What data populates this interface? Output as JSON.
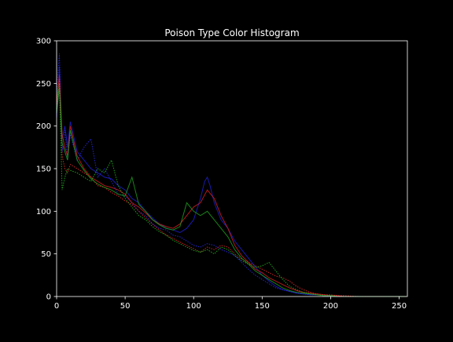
{
  "chart_data": {
    "type": "line",
    "title": "Poison Type Color Histogram",
    "xlabel": "",
    "ylabel": "",
    "xlim": [
      0,
      256
    ],
    "ylim": [
      0,
      300
    ],
    "x_ticks": [
      0,
      50,
      100,
      150,
      200,
      250
    ],
    "y_ticks": [
      0,
      50,
      100,
      150,
      200,
      250,
      300
    ],
    "x_tick_labels": [
      "0",
      "50",
      "100",
      "150",
      "200",
      "250"
    ],
    "y_tick_labels": [
      "0",
      "50",
      "100",
      "150",
      "200",
      "250",
      "300"
    ],
    "grid": false,
    "legend": "none",
    "background": "#000000",
    "axis_color": "#ffffff",
    "series": [
      {
        "color": "#1f1fcc",
        "style": "solid",
        "x": [
          0,
          2,
          4,
          6,
          8,
          10,
          15,
          20,
          25,
          30,
          35,
          40,
          45,
          50,
          55,
          60,
          65,
          70,
          75,
          80,
          85,
          90,
          95,
          100,
          105,
          108,
          110,
          112,
          115,
          120,
          125,
          130,
          135,
          140,
          145,
          150,
          155,
          160,
          165,
          170,
          175,
          180,
          185,
          190,
          195,
          200,
          205,
          210,
          220,
          230,
          240,
          255
        ],
        "y": [
          210,
          270,
          185,
          200,
          175,
          205,
          170,
          160,
          150,
          145,
          140,
          138,
          130,
          125,
          115,
          110,
          100,
          92,
          85,
          80,
          78,
          75,
          80,
          90,
          115,
          135,
          140,
          130,
          110,
          90,
          80,
          65,
          55,
          45,
          35,
          25,
          18,
          12,
          8,
          6,
          4,
          3,
          2,
          2,
          1,
          1,
          0,
          0,
          0,
          0,
          0,
          0
        ]
      },
      {
        "color": "#2a2aee",
        "style": "dotted",
        "x": [
          0,
          2,
          4,
          6,
          8,
          10,
          15,
          20,
          25,
          30,
          35,
          40,
          45,
          50,
          55,
          60,
          65,
          70,
          75,
          80,
          85,
          90,
          95,
          100,
          105,
          110,
          115,
          120,
          125,
          130,
          135,
          140,
          145,
          150,
          155,
          160,
          165,
          170,
          175,
          180,
          185,
          190,
          195,
          200,
          205,
          210,
          220,
          230,
          240,
          255
        ],
        "y": [
          240,
          285,
          170,
          195,
          160,
          190,
          160,
          175,
          185,
          140,
          150,
          135,
          120,
          118,
          110,
          100,
          95,
          85,
          80,
          78,
          72,
          70,
          65,
          60,
          58,
          62,
          60,
          55,
          52,
          48,
          40,
          32,
          25,
          20,
          15,
          10,
          8,
          6,
          4,
          3,
          2,
          2,
          1,
          1,
          0,
          0,
          0,
          0,
          0,
          0
        ]
      },
      {
        "color": "#cc1f1f",
        "style": "solid",
        "x": [
          0,
          2,
          4,
          6,
          8,
          10,
          15,
          20,
          25,
          30,
          35,
          40,
          45,
          50,
          55,
          60,
          65,
          70,
          75,
          80,
          85,
          90,
          95,
          100,
          105,
          110,
          115,
          120,
          125,
          130,
          135,
          140,
          145,
          150,
          155,
          160,
          165,
          170,
          175,
          180,
          185,
          190,
          195,
          200,
          205,
          210,
          220,
          230,
          240,
          255
        ],
        "y": [
          225,
          260,
          190,
          175,
          165,
          200,
          165,
          150,
          140,
          135,
          130,
          128,
          125,
          120,
          110,
          105,
          98,
          90,
          85,
          82,
          80,
          85,
          95,
          105,
          110,
          125,
          115,
          95,
          80,
          60,
          48,
          40,
          32,
          28,
          22,
          18,
          14,
          10,
          7,
          5,
          4,
          3,
          2,
          1,
          1,
          0,
          0,
          0,
          0,
          0
        ]
      },
      {
        "color": "#ee2a2a",
        "style": "dotted",
        "x": [
          0,
          2,
          4,
          6,
          8,
          10,
          15,
          20,
          25,
          30,
          35,
          40,
          45,
          50,
          55,
          60,
          65,
          70,
          75,
          80,
          85,
          90,
          95,
          100,
          105,
          110,
          115,
          120,
          125,
          130,
          135,
          140,
          145,
          150,
          155,
          160,
          165,
          170,
          175,
          180,
          185,
          190,
          195,
          200,
          205,
          210,
          220,
          230,
          240,
          255
        ],
        "y": [
          230,
          255,
          165,
          150,
          145,
          155,
          150,
          145,
          140,
          130,
          128,
          122,
          118,
          112,
          108,
          100,
          92,
          85,
          78,
          72,
          68,
          64,
          60,
          56,
          52,
          58,
          55,
          60,
          58,
          50,
          44,
          40,
          36,
          32,
          28,
          24,
          22,
          18,
          12,
          8,
          5,
          3,
          2,
          2,
          1,
          1,
          0,
          0,
          0,
          0
        ]
      },
      {
        "color": "#1f991f",
        "style": "solid",
        "x": [
          0,
          2,
          4,
          6,
          8,
          10,
          15,
          20,
          25,
          30,
          35,
          40,
          45,
          50,
          55,
          60,
          65,
          70,
          75,
          80,
          85,
          90,
          95,
          100,
          105,
          110,
          115,
          120,
          125,
          130,
          135,
          140,
          145,
          150,
          155,
          160,
          165,
          170,
          175,
          180,
          185,
          190,
          195,
          200,
          205,
          210,
          220,
          230,
          240,
          255
        ],
        "y": [
          215,
          245,
          180,
          170,
          160,
          195,
          160,
          148,
          138,
          132,
          128,
          125,
          120,
          118,
          140,
          108,
          100,
          90,
          84,
          80,
          78,
          82,
          110,
          100,
          95,
          100,
          90,
          80,
          70,
          55,
          45,
          38,
          30,
          25,
          20,
          15,
          10,
          7,
          5,
          4,
          3,
          2,
          1,
          1,
          0,
          0,
          0,
          0,
          0,
          0
        ]
      },
      {
        "color": "#22bb22",
        "style": "dotted",
        "x": [
          0,
          2,
          4,
          6,
          8,
          10,
          15,
          20,
          25,
          30,
          35,
          40,
          45,
          50,
          55,
          60,
          65,
          70,
          75,
          80,
          85,
          90,
          95,
          100,
          105,
          110,
          115,
          120,
          125,
          130,
          135,
          140,
          145,
          150,
          155,
          160,
          165,
          170,
          175,
          180,
          185,
          190,
          195,
          200,
          205,
          210,
          220,
          230,
          240,
          255
        ],
        "y": [
          220,
          250,
          125,
          140,
          150,
          148,
          145,
          140,
          135,
          150,
          145,
          160,
          130,
          115,
          105,
          95,
          90,
          82,
          76,
          72,
          66,
          62,
          58,
          54,
          52,
          55,
          50,
          58,
          55,
          48,
          42,
          38,
          34,
          36,
          40,
          30,
          20,
          12,
          8,
          5,
          3,
          2,
          1,
          1,
          0,
          0,
          0,
          0,
          0,
          0
        ]
      }
    ]
  }
}
